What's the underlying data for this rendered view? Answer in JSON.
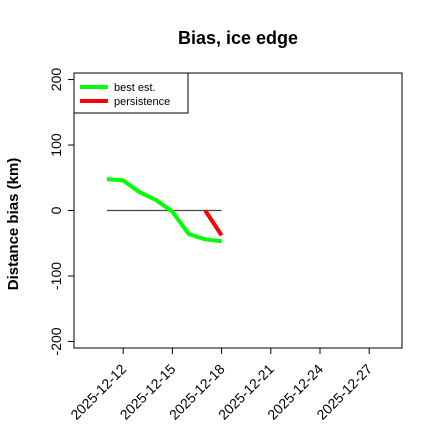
{
  "chart_data": {
    "type": "line",
    "title": "Bias, ice edge",
    "xlabel": "",
    "ylabel": "Distance bias (km)",
    "xlim": [
      "2025-12-09",
      "2025-12-29"
    ],
    "ylim": [
      -210,
      210
    ],
    "x_tick_labels": [
      "2025-12-12",
      "2025-12-15",
      "2025-12-18",
      "2025-12-21",
      "2025-12-24",
      "2025-12-27"
    ],
    "y_ticks": [
      -200,
      -100,
      0,
      100,
      200
    ],
    "y_tick_labels": [
      "-200",
      "-100",
      "0",
      "100",
      "200"
    ],
    "reference_line": {
      "y": 0,
      "x_start": "2025-12-11",
      "x_end": "2025-12-18",
      "color": "#444444"
    },
    "series": [
      {
        "name": "best est.",
        "color": "#00ff00",
        "points": [
          {
            "x": "2025-12-11",
            "y": 48
          },
          {
            "x": "2025-12-12",
            "y": 46
          },
          {
            "x": "2025-12-13",
            "y": 28
          },
          {
            "x": "2025-12-14",
            "y": 16
          },
          {
            "x": "2025-12-15",
            "y": -2
          },
          {
            "x": "2025-12-16",
            "y": -36
          },
          {
            "x": "2025-12-17",
            "y": -44
          },
          {
            "x": "2025-12-18",
            "y": -47
          }
        ]
      },
      {
        "name": "persistence",
        "color": "#ff0000",
        "points": [
          {
            "x": "2025-12-17",
            "y": 0
          },
          {
            "x": "2025-12-18",
            "y": -38
          }
        ]
      }
    ],
    "legend_position": "top-left",
    "grid": false
  }
}
